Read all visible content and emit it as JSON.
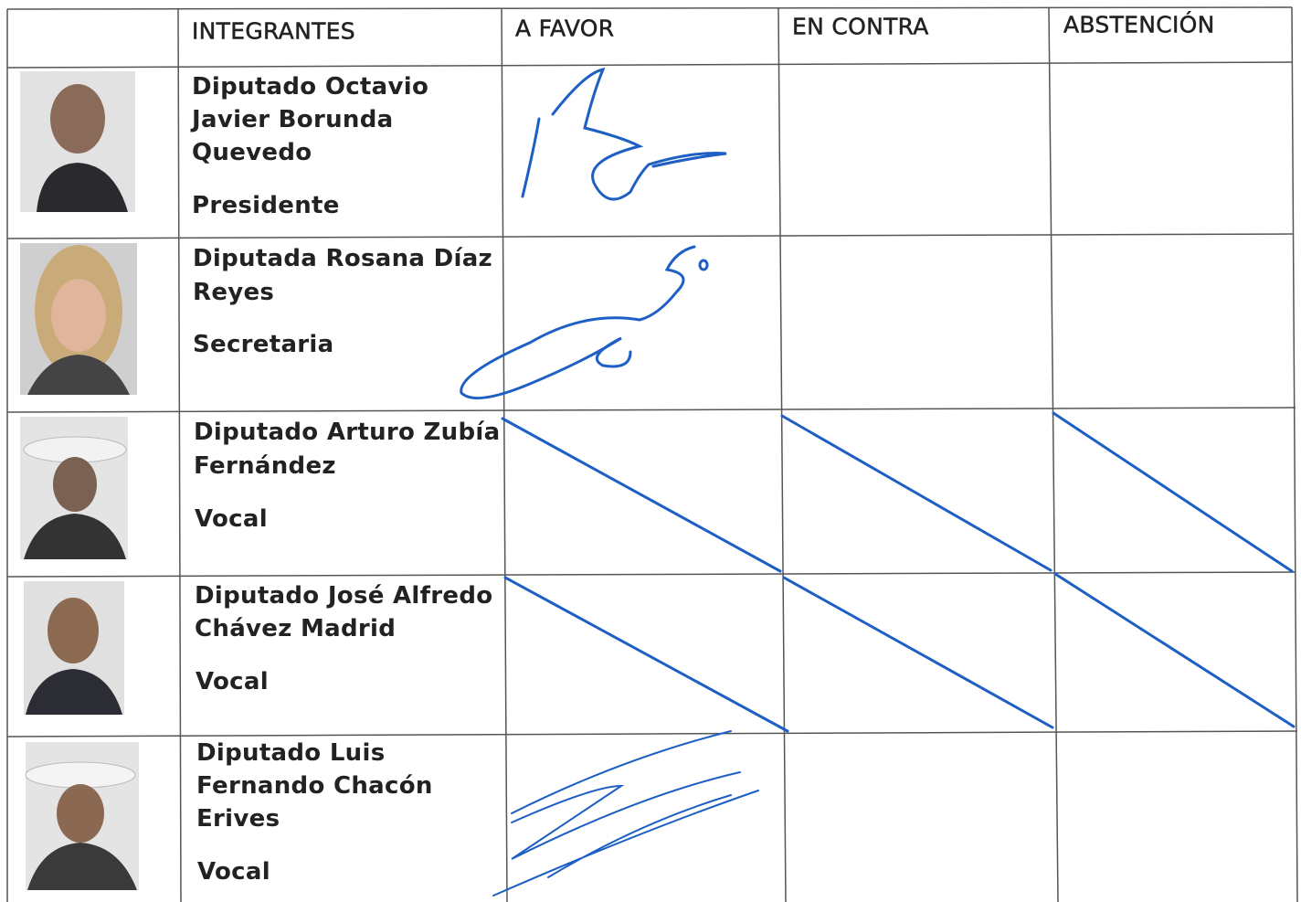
{
  "table": {
    "header": [
      "INTEGRANTES",
      "A FAVOR",
      "EN CONTRA",
      "ABSTENCIÓN"
    ],
    "rows": [
      {
        "name": [
          "Diputado Octavio",
          "Javier Borunda",
          "Quevedo"
        ],
        "role": "Presidente"
      },
      {
        "name": [
          "Diputada Rosana Díaz",
          "Reyes"
        ],
        "role": "Secretaria"
      },
      {
        "name": [
          "Diputado Arturo Zubía",
          "Fernández"
        ],
        "role": "Vocal"
      },
      {
        "name": [
          "Diputado José Alfredo",
          "Chávez Madrid"
        ],
        "role": "Vocal"
      },
      {
        "name": [
          "Diputado Luis",
          "Fernando Chacón",
          "Erives"
        ],
        "role": "Vocal"
      }
    ]
  }
}
